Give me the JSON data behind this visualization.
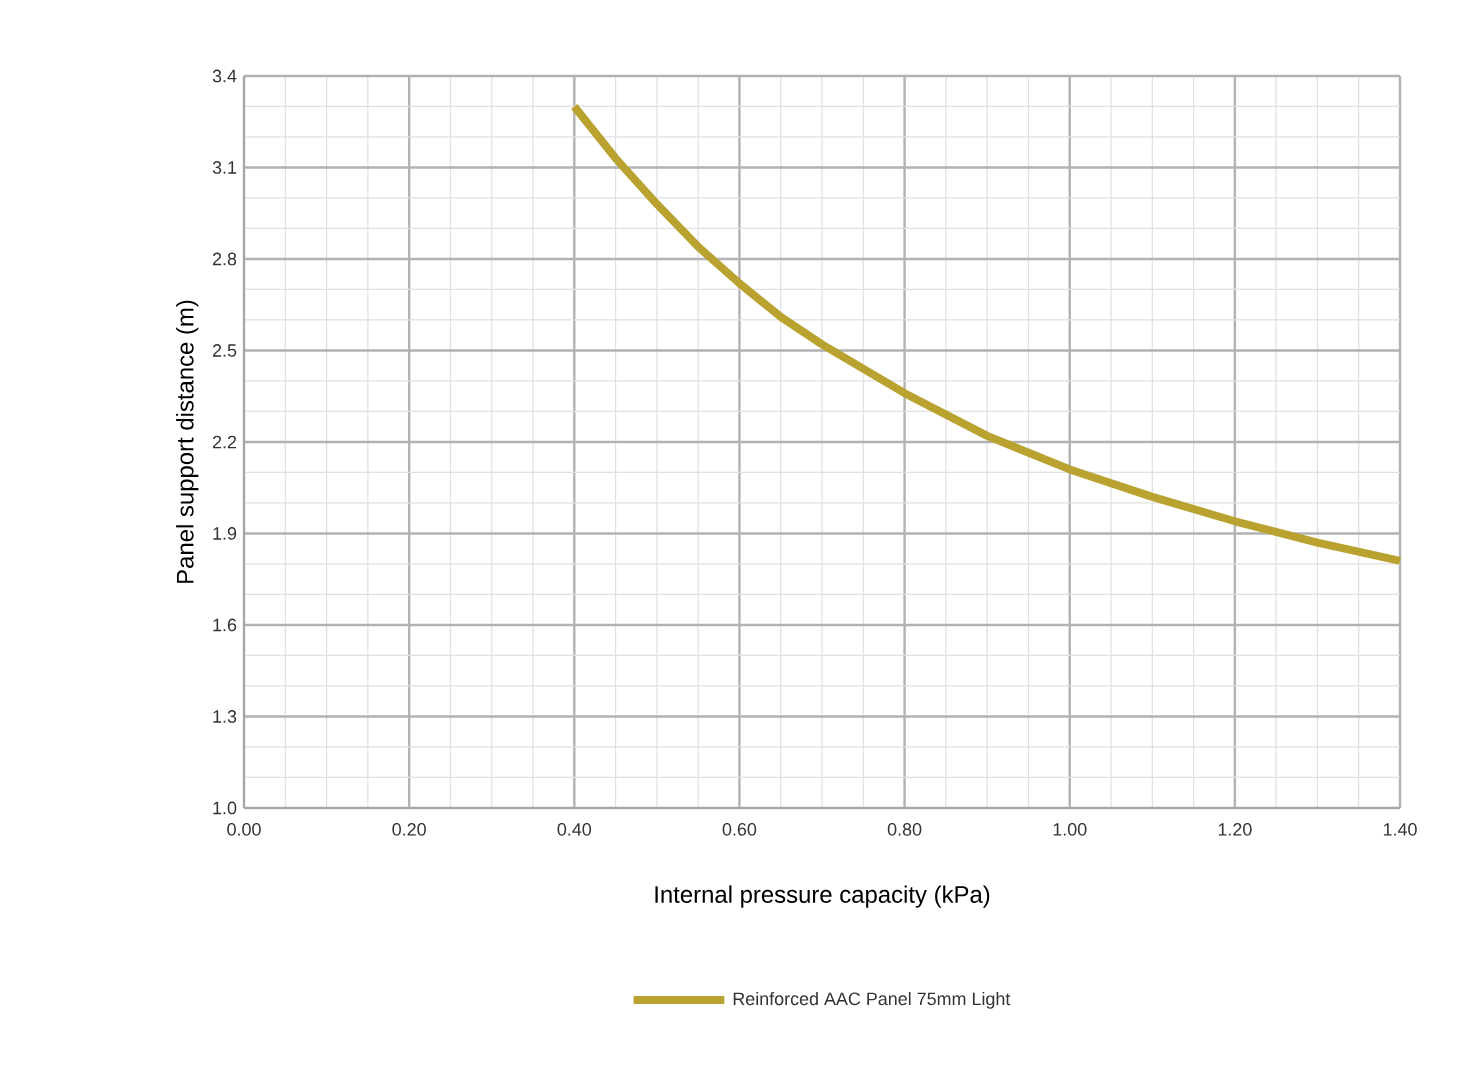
{
  "chart_data": {
    "type": "line",
    "xlabel": "Internal pressure capacity (kPa)",
    "ylabel": "Panel support distance (m)",
    "x": [
      0.4,
      0.45,
      0.5,
      0.55,
      0.6,
      0.65,
      0.7,
      0.8,
      0.9,
      1.0,
      1.1,
      1.2,
      1.3,
      1.4
    ],
    "series": [
      {
        "name": "Reinforced AAC Panel 75mm Light",
        "color": "#b9a22f",
        "values": [
          3.3,
          3.13,
          2.98,
          2.84,
          2.72,
          2.61,
          2.52,
          2.36,
          2.22,
          2.11,
          2.02,
          1.94,
          1.87,
          1.81
        ]
      }
    ],
    "xlim": [
      0,
      1.4
    ],
    "ylim": [
      1.0,
      3.4
    ],
    "xticks": [
      {
        "value": 0,
        "label": "0.00"
      },
      {
        "value": 0.2,
        "label": "0.20"
      },
      {
        "value": 0.4,
        "label": "0.40"
      },
      {
        "value": 0.6,
        "label": "0.60"
      },
      {
        "value": 0.8,
        "label": "0.80"
      },
      {
        "value": 1.0,
        "label": "1.00"
      },
      {
        "value": 1.2,
        "label": "1.20"
      },
      {
        "value": 1.4,
        "label": "1.40"
      }
    ],
    "yticks": [
      {
        "value": 1.0,
        "label": "1.0"
      },
      1.3,
      1.6,
      1.9,
      2.2,
      2.5,
      2.8,
      3.1,
      3.4
    ],
    "grid": true,
    "legend": "bottom",
    "marker": "none",
    "line_style": "solid"
  }
}
